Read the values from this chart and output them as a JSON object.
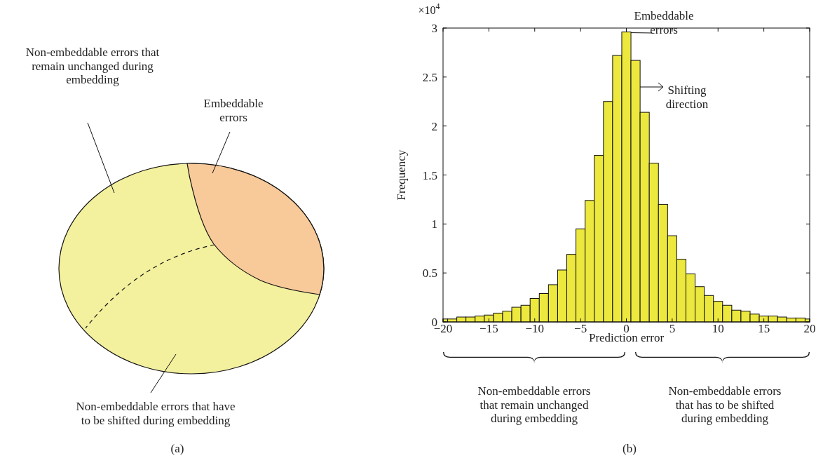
{
  "chart_data": [
    {
      "type": "other",
      "annotations": [
        "Non-embeddable errors that\nremain unchanged during\nembedding",
        "Embeddable\nerrors",
        "Non-embeddable errors that have\nto be shifted during embedding",
        "(a)"
      ]
    },
    {
      "type": "histogram",
      "ylabel": "Frequency",
      "xlabel": "Prediction error",
      "color": "#ece83e",
      "bins": [
        -20,
        -19.5,
        -18.5,
        -17.5,
        -16.5,
        -15.5,
        -14.5,
        -13.5,
        -12.5,
        -11.5,
        -10.5,
        -9.5,
        -8.5,
        -7.5,
        -6.5,
        -5.5,
        -4.5,
        -3.5,
        -2.5,
        -1.5,
        -0.5,
        0.5,
        1.5,
        2.5,
        3.5,
        4.5,
        5.5,
        6.5,
        7.5,
        8.5,
        9.5,
        10.5,
        11.5,
        12.5,
        13.5,
        14.5,
        15.5,
        16.5,
        17.5,
        18.5,
        19.5,
        20
      ],
      "values": [
        0.03,
        0.03,
        0.05,
        0.05,
        0.06,
        0.07,
        0.09,
        0.11,
        0.15,
        0.17,
        0.24,
        0.29,
        0.38,
        0.53,
        0.69,
        0.95,
        1.24,
        1.7,
        2.25,
        2.72,
        2.96,
        2.67,
        2.14,
        1.62,
        1.2,
        0.88,
        0.64,
        0.49,
        0.36,
        0.27,
        0.21,
        0.17,
        0.12,
        0.11,
        0.08,
        0.06,
        0.06,
        0.05,
        0.04,
        0.04,
        0.03
      ],
      "xlim": [
        -20,
        20
      ],
      "ylim": [
        0,
        3
      ],
      "xticks": [
        {
          "value": -20,
          "label": "−20"
        },
        {
          "value": -15,
          "label": "−15"
        },
        {
          "value": -10,
          "label": "−10"
        },
        {
          "value": -5,
          "label": "−5"
        },
        0,
        5,
        10,
        15,
        20
      ],
      "yticks": [
        0,
        0.5,
        1,
        1.5,
        2,
        2.5,
        3
      ],
      "annotations": [
        "×10$^{4}$",
        "Embeddable\nerrors",
        "Shifting\ndirection",
        "Non-embeddable errors\nthat remain unchanged\nduring embedding",
        "Non-embeddable errors\nthat has to be shifted\nduring embedding",
        "(b)"
      ]
    }
  ]
}
